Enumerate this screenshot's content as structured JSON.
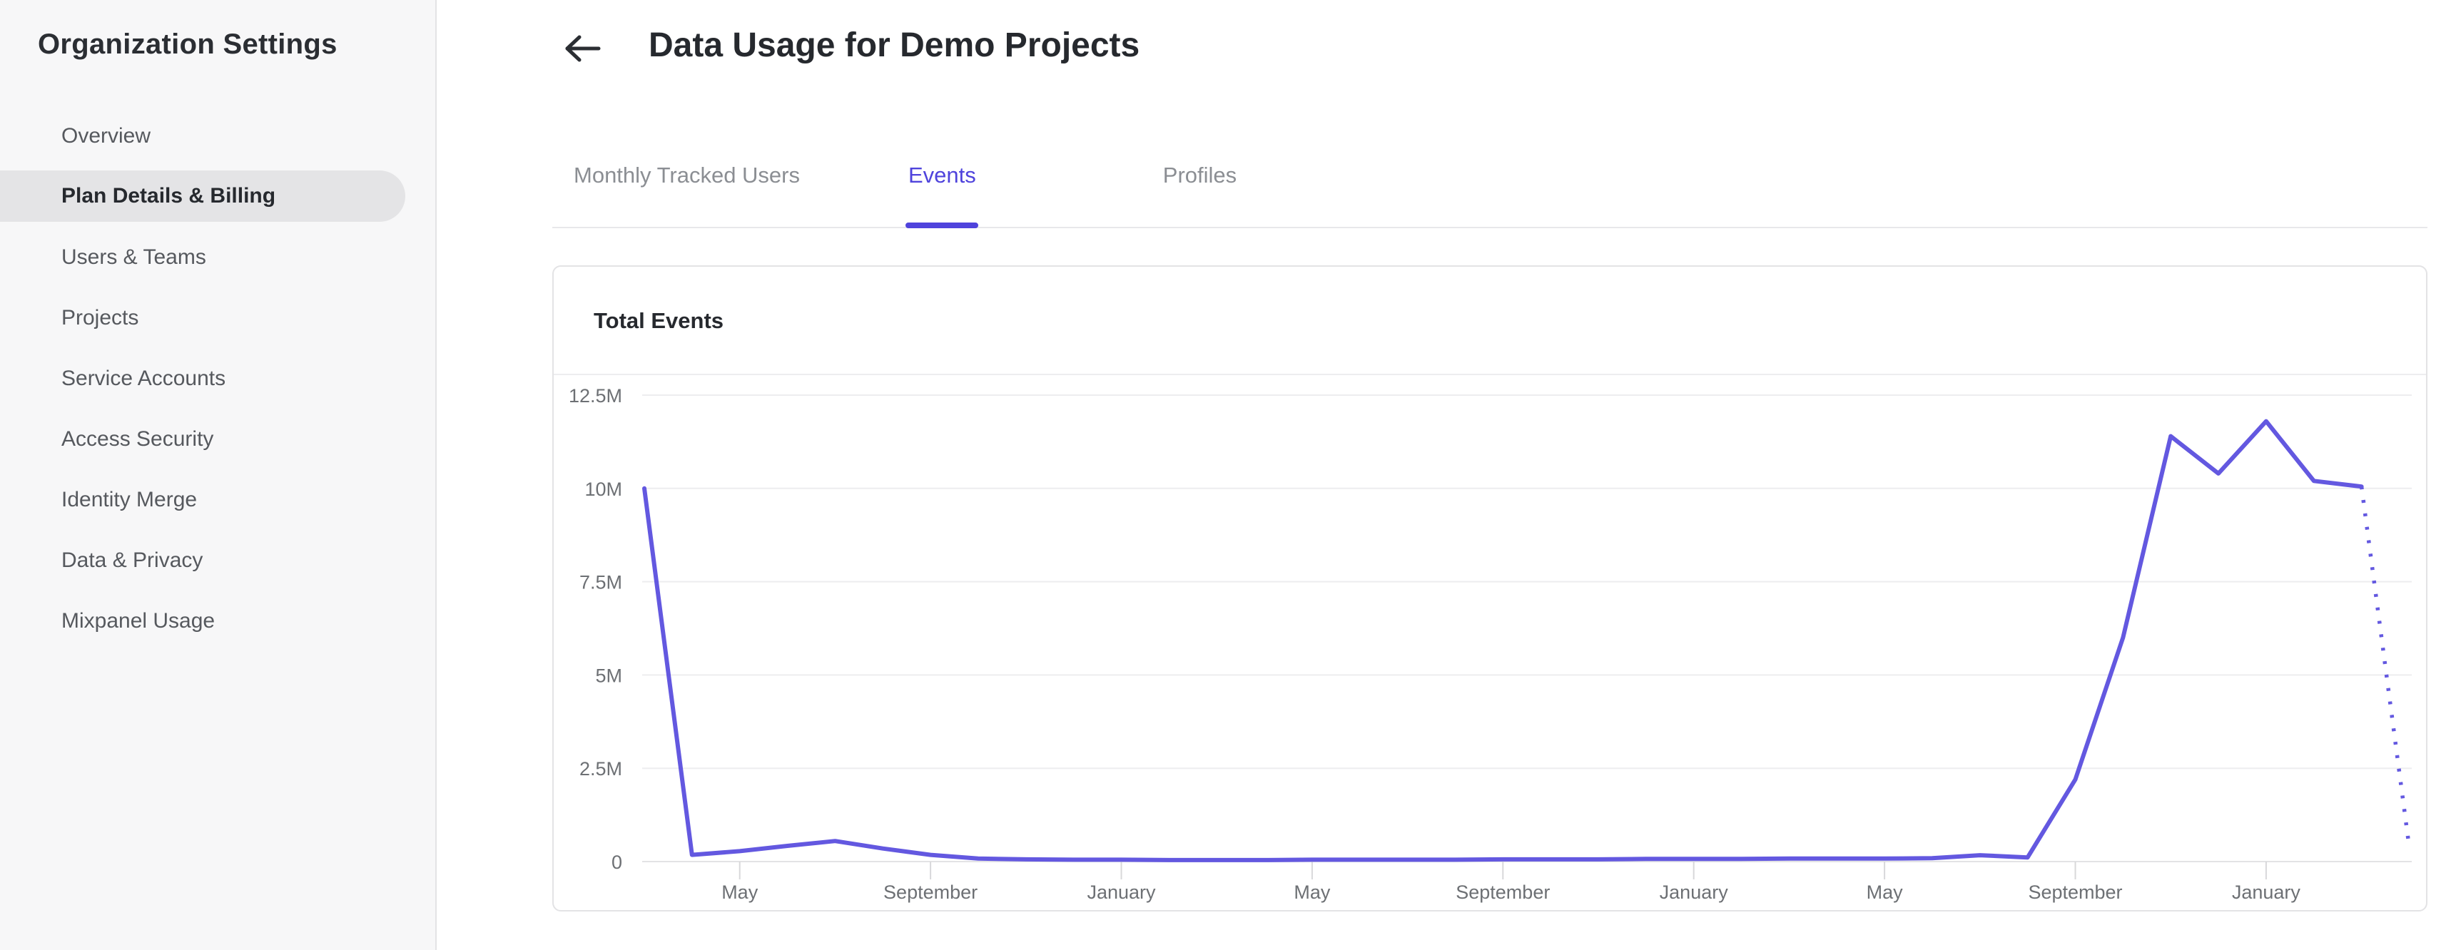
{
  "sidebar": {
    "title": "Organization Settings",
    "items": [
      {
        "label": "Overview",
        "active": false
      },
      {
        "label": "Plan Details & Billing",
        "active": true
      },
      {
        "label": "Users & Teams",
        "active": false
      },
      {
        "label": "Projects",
        "active": false
      },
      {
        "label": "Service Accounts",
        "active": false
      },
      {
        "label": "Access Security",
        "active": false
      },
      {
        "label": "Identity Merge",
        "active": false
      },
      {
        "label": "Data & Privacy",
        "active": false
      },
      {
        "label": "Mixpanel Usage",
        "active": false
      }
    ]
  },
  "header": {
    "back_icon": "arrow-left",
    "title": "Data Usage for Demo Projects"
  },
  "tabs": {
    "items": [
      {
        "label": "Monthly Tracked Users",
        "active": false
      },
      {
        "label": "Events",
        "active": true
      },
      {
        "label": "Profiles",
        "active": false
      }
    ]
  },
  "card": {
    "title": "Total Events"
  },
  "colors": {
    "accent_purple": "#4f43dc",
    "line_purple": "#6358e0",
    "sidebar_bg": "#f7f7f8",
    "active_pill": "#e4e4e6",
    "text_dark": "#26292e",
    "text_gray": "#56595e",
    "tab_inactive": "#8b8e93",
    "axis_label": "#6d7074",
    "gridline": "#ededef",
    "axis_line": "#e3e3e5",
    "tick_mark": "#d8d8da"
  },
  "chart_data": {
    "type": "line",
    "title": "Total Events",
    "grid": "horizontal",
    "legend": "none",
    "y_range_millions": [
      0,
      12.5
    ],
    "y_tick_labels": [
      "0",
      "2.5M",
      "5M",
      "7.5M",
      "10M",
      "12.5M"
    ],
    "x_tick_labels": [
      "May",
      "September",
      "January",
      "May",
      "September",
      "January",
      "May",
      "September",
      "January"
    ],
    "x_tick_month_indices": [
      2,
      6,
      10,
      14,
      18,
      22,
      26,
      30,
      34
    ],
    "x_months": [
      "Mar",
      "Apr",
      "May",
      "Jun",
      "Jul",
      "Aug",
      "Sep",
      "Oct",
      "Nov",
      "Dec",
      "Jan",
      "Feb",
      "Mar",
      "Apr",
      "May",
      "Jun",
      "Jul",
      "Aug",
      "Sep",
      "Oct",
      "Nov",
      "Dec",
      "Jan",
      "Feb",
      "Mar",
      "Apr",
      "May",
      "Jun",
      "Jul",
      "Aug",
      "Sep",
      "Oct",
      "Nov",
      "Dec",
      "Jan",
      "Feb",
      "Mar",
      "Apr"
    ],
    "series": [
      {
        "name": "Total Events",
        "values_millions": [
          10,
          0.18,
          0.28,
          0.42,
          0.55,
          0.35,
          0.18,
          0.08,
          0.06,
          0.05,
          0.05,
          0.04,
          0.04,
          0.04,
          0.05,
          0.05,
          0.05,
          0.05,
          0.06,
          0.06,
          0.06,
          0.07,
          0.07,
          0.07,
          0.08,
          0.08,
          0.08,
          0.09,
          0.17,
          0.11,
          2.2,
          6.0,
          11.4,
          10.4,
          11.8,
          10.2,
          10.05,
          0.4
        ],
        "last_segment_style": "dotted-projection"
      }
    ]
  }
}
